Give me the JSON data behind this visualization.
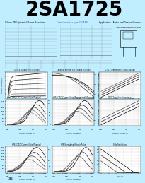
{
  "title": "2SA1725",
  "title_bg": "#00FFFF",
  "title_fontsize": 20,
  "title_fontweight": "bold",
  "page_bg": "#C0EEFF",
  "graph_bg": "#FFFFFF",
  "graph_grid_color": "#BBBBBB",
  "graph_line_colors": [
    "#000000",
    "#222222",
    "#444444",
    "#666666",
    "#888888"
  ],
  "page_number": "36",
  "subtitle_left": "Silicon PNP Epitaxial Planar Transistor",
  "subtitle_mid": "Complement to type 2SC4468",
  "subtitle_right": "Application : Audio and General Purpose"
}
